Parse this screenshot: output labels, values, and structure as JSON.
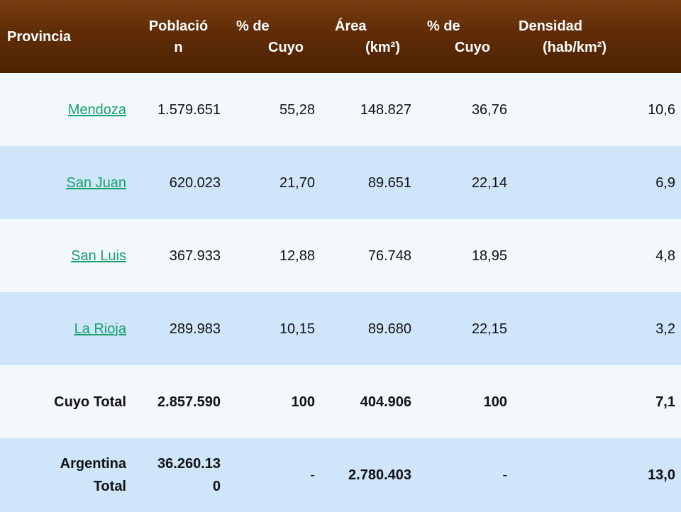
{
  "headers": [
    {
      "line1": "Provincia",
      "line2": ""
    },
    {
      "line1": "Població",
      "line2": "n"
    },
    {
      "line1": "% de",
      "line2": "Cuyo"
    },
    {
      "line1": "Área",
      "line2": "(km²)"
    },
    {
      "line1": "% de",
      "line2": "Cuyo"
    },
    {
      "line1": "Densidad",
      "line2": "(hab/km²)"
    }
  ],
  "rows": [
    {
      "provincia": "Mendoza",
      "poblacion": "1.579.651",
      "pct_pob": "55,28",
      "area": "148.827",
      "pct_area": "36,76",
      "densidad": "10,6"
    },
    {
      "provincia": "San Juan",
      "poblacion": "620.023",
      "pct_pob": "21,70",
      "area": "89.651",
      "pct_area": "22,14",
      "densidad": "6,9"
    },
    {
      "provincia": "San Luis",
      "poblacion": "367.933",
      "pct_pob": "12,88",
      "area": "76.748",
      "pct_area": "18,95",
      "densidad": "4,8"
    },
    {
      "provincia": "La Rioja",
      "poblacion": "289.983",
      "pct_pob": "10,15",
      "area": "89.680",
      "pct_area": "22,15",
      "densidad": "3,2"
    }
  ],
  "cuyo_total": {
    "label": "Cuyo Total",
    "poblacion": "2.857.590",
    "pct_pob": "100",
    "area": "404.906",
    "pct_area": "100",
    "densidad": "7,1"
  },
  "argentina_total": {
    "label_line1": "Argentina",
    "label_line2": "Total",
    "poblacion_line1": "36.260.13",
    "poblacion_line2": "0",
    "pct_pob": "-",
    "area": "2.780.403",
    "pct_area": "-",
    "densidad": "13,0"
  },
  "colors": {
    "header_bg": "#5f2c06",
    "row_light": "#f3f8fd",
    "row_blue": "#cfe5fa",
    "link": "#1aa06a"
  }
}
